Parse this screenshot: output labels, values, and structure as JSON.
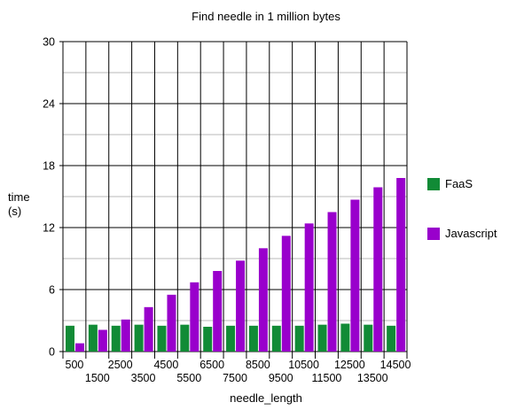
{
  "chart_data": {
    "type": "bar",
    "title": "Find needle in 1 million bytes",
    "xlabel": "needle_length",
    "ylabel_lines": [
      "time",
      "(s)"
    ],
    "categories": [
      "500",
      "1500",
      "2500",
      "3500",
      "4500",
      "5500",
      "6500",
      "7500",
      "8500",
      "9500",
      "10500",
      "11500",
      "12500",
      "13500",
      "14500"
    ],
    "ylim": [
      0,
      30
    ],
    "yticks": [
      0,
      6,
      12,
      18,
      24,
      30
    ],
    "minor_grid_step": 3,
    "legend_position": "right",
    "series": [
      {
        "name": "FaaS",
        "color": "#118b36",
        "values": [
          2.5,
          2.6,
          2.5,
          2.6,
          2.5,
          2.6,
          2.4,
          2.5,
          2.5,
          2.5,
          2.5,
          2.6,
          2.7,
          2.6,
          2.5
        ]
      },
      {
        "name": "Javascript",
        "color": "#9900cc",
        "values": [
          0.8,
          2.1,
          3.1,
          4.3,
          5.5,
          6.7,
          7.8,
          8.8,
          10.0,
          11.2,
          12.4,
          13.5,
          14.7,
          15.9,
          16.8
        ]
      }
    ]
  }
}
